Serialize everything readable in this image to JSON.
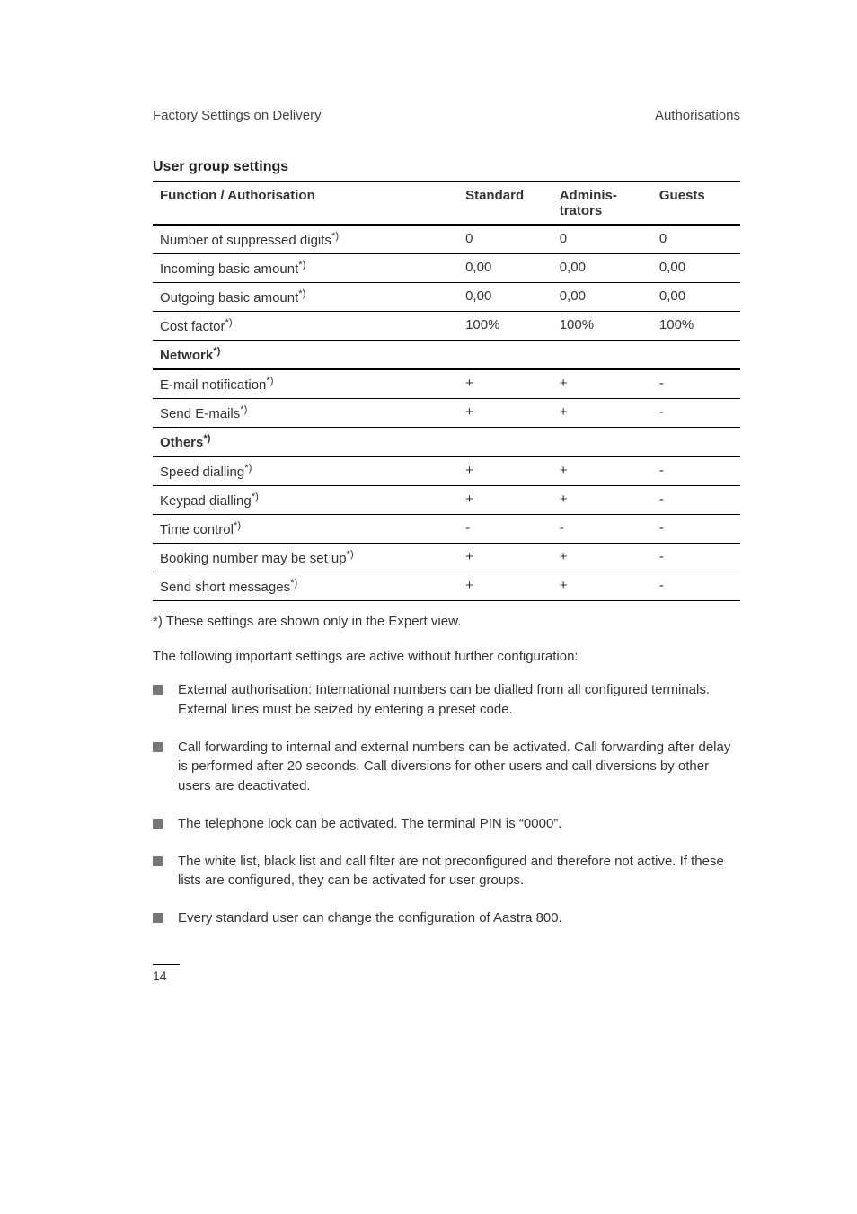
{
  "header": {
    "left": "Factory Settings on Delivery",
    "right": "Authorisations"
  },
  "section_title": "User group settings",
  "table": {
    "columns": {
      "func": "Function / Authorisation",
      "std": "Standard",
      "adm": "Adminis-trators",
      "gst": "Guests"
    },
    "rows": [
      {
        "type": "data",
        "func": "Number of suppressed digits",
        "sup": "*)",
        "std": "0",
        "adm": "0",
        "gst": "0"
      },
      {
        "type": "data",
        "func": "Incoming basic amount",
        "sup": "*)",
        "std": "0,00",
        "adm": "0,00",
        "gst": "0,00"
      },
      {
        "type": "data",
        "func": "Outgoing basic amount",
        "sup": "*)",
        "std": "0,00",
        "adm": "0,00",
        "gst": "0,00"
      },
      {
        "type": "data",
        "func": "Cost factor",
        "sup": "*)",
        "std": "100%",
        "adm": "100%",
        "gst": "100%"
      },
      {
        "type": "group",
        "label": "Network",
        "sup": "*)"
      },
      {
        "type": "data",
        "func": "E-mail notification",
        "sup": "*)",
        "std": "+",
        "adm": "+",
        "gst": "-"
      },
      {
        "type": "data",
        "func": "Send E-mails",
        "sup": "*)",
        "std": "+",
        "adm": "+",
        "gst": "-"
      },
      {
        "type": "group",
        "label": "Others",
        "sup": "*)"
      },
      {
        "type": "data",
        "func": "Speed dialling",
        "sup": "*)",
        "std": "+",
        "adm": "+",
        "gst": "-"
      },
      {
        "type": "data",
        "func": "Keypad dialling",
        "sup": "*)",
        "std": "+",
        "adm": "+",
        "gst": "-"
      },
      {
        "type": "data",
        "func": "Time control",
        "sup": "*)",
        "std": "-",
        "adm": "-",
        "gst": "-"
      },
      {
        "type": "data",
        "func": "Booking number may be set up",
        "sup": "*)",
        "std": "+",
        "adm": "+",
        "gst": "-"
      },
      {
        "type": "data",
        "func": "Send short messages",
        "sup": "*)",
        "std": "+",
        "adm": "+",
        "gst": "-"
      }
    ]
  },
  "footnote": "*) These settings are shown only in the Expert view.",
  "intro": "The following important settings are active without further configuration:",
  "bullets": [
    "External authorisation: International numbers can be dialled from all configured terminals. External lines must be seized by entering a preset code.",
    "Call forwarding to internal and external numbers can be activated. Call forwarding after delay is performed after 20 seconds. Call diversions for other users and call diversions by other users are deactivated.",
    "The telephone lock can be activated. The terminal PIN is “0000”.",
    "The white list, black list and call filter are not preconfigured and therefore not active. If these lists are configured, they can be activated for user groups.",
    "Every standard user can change the configuration of Aastra 800."
  ],
  "page_number": "14"
}
